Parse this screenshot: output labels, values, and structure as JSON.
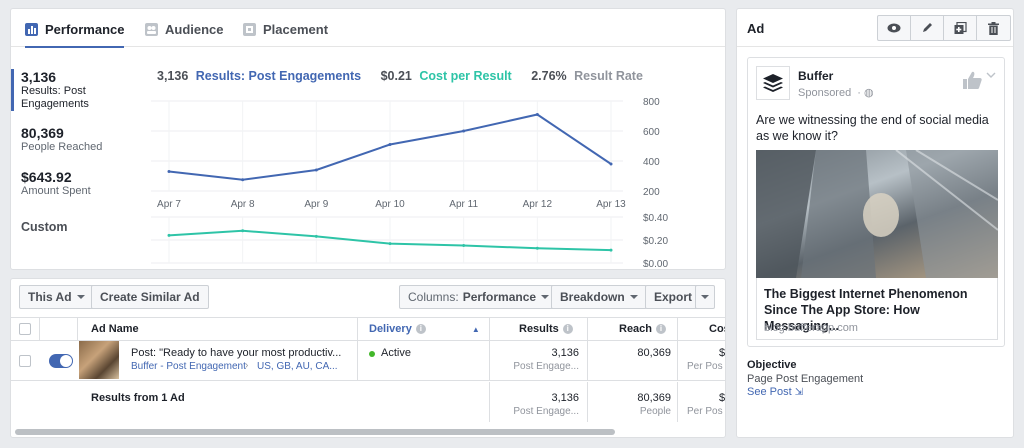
{
  "stats": {
    "tabs": [
      {
        "label": "Performance"
      },
      {
        "label": "Audience"
      },
      {
        "label": "Placement"
      }
    ],
    "side": [
      {
        "value": "3,136",
        "label": "Results: Post Engagements"
      },
      {
        "value": "80,369",
        "label": "People Reached"
      },
      {
        "value": "$643.92",
        "label": "Amount Spent"
      },
      {
        "value": "Custom",
        "label": ""
      }
    ],
    "legend": {
      "results_value": "3,136",
      "results_label": "Results: Post Engagements",
      "cpr_value": "$0.21",
      "cpr_label": "Cost per Result",
      "rate_value": "2.76%",
      "rate_label": "Result Rate"
    },
    "colors": {
      "results": "#4267b2",
      "cpr": "#2ec4a7",
      "rate": "#90949c"
    }
  },
  "chart_data": [
    {
      "type": "line",
      "x": [
        "Apr 7",
        "Apr 8",
        "Apr 9",
        "Apr 10",
        "Apr 11",
        "Apr 12",
        "Apr 13"
      ],
      "series": [
        {
          "name": "Results: Post Engagements",
          "values": [
            330,
            275,
            340,
            510,
            600,
            710,
            380
          ]
        }
      ],
      "yticks": [
        "800",
        "600",
        "400",
        "200"
      ],
      "ylim": [
        200,
        800
      ]
    },
    {
      "type": "line",
      "x": [
        "Apr 7",
        "Apr 8",
        "Apr 9",
        "Apr 10",
        "Apr 11",
        "Apr 12",
        "Apr 13"
      ],
      "series": [
        {
          "name": "Cost per Result",
          "values": [
            0.3,
            0.35,
            0.29,
            0.21,
            0.19,
            0.16,
            0.14
          ]
        }
      ],
      "yticks": [
        "$0.40",
        "$0.20",
        "$0.00"
      ],
      "ylim": [
        0,
        0.5
      ]
    }
  ],
  "toolbar": {
    "this_ad": "This Ad",
    "create_similar": "Create Similar Ad",
    "columns_prefix": "Columns:",
    "columns_value": "Performance",
    "breakdown": "Breakdown",
    "export": "Export"
  },
  "table": {
    "headers": {
      "name": "Ad Name",
      "delivery": "Delivery",
      "results": "Results",
      "reach": "Reach",
      "cost": "Cos"
    },
    "row": {
      "name": "Post: \"Ready to have your most productiv...",
      "campaign": "Buffer - Post Engagement",
      "targeting": "US, GB, AU, CA...",
      "delivery": "Active",
      "results": "3,136",
      "results_sub": "Post Engage...",
      "reach": "80,369",
      "cost": "$",
      "cost_sub": "Per Pos"
    },
    "summary": {
      "label": "Results from 1 Ad",
      "results": "3,136",
      "results_sub": "Post Engage...",
      "reach": "80,369",
      "reach_sub": "People",
      "cost": "$",
      "cost_sub": "Per Pos"
    }
  },
  "preview": {
    "title": "Ad",
    "page_name": "Buffer",
    "sponsored": "Sponsored",
    "body": "Are we witnessing the end of social media as we know it?",
    "headline": "The Biggest Internet Phenomenon Since The App Store: How Messaging...",
    "domain": "blog.bufferapp.com",
    "objective_title": "Objective",
    "objective_value": "Page Post Engagement",
    "see_post": "See Post"
  }
}
